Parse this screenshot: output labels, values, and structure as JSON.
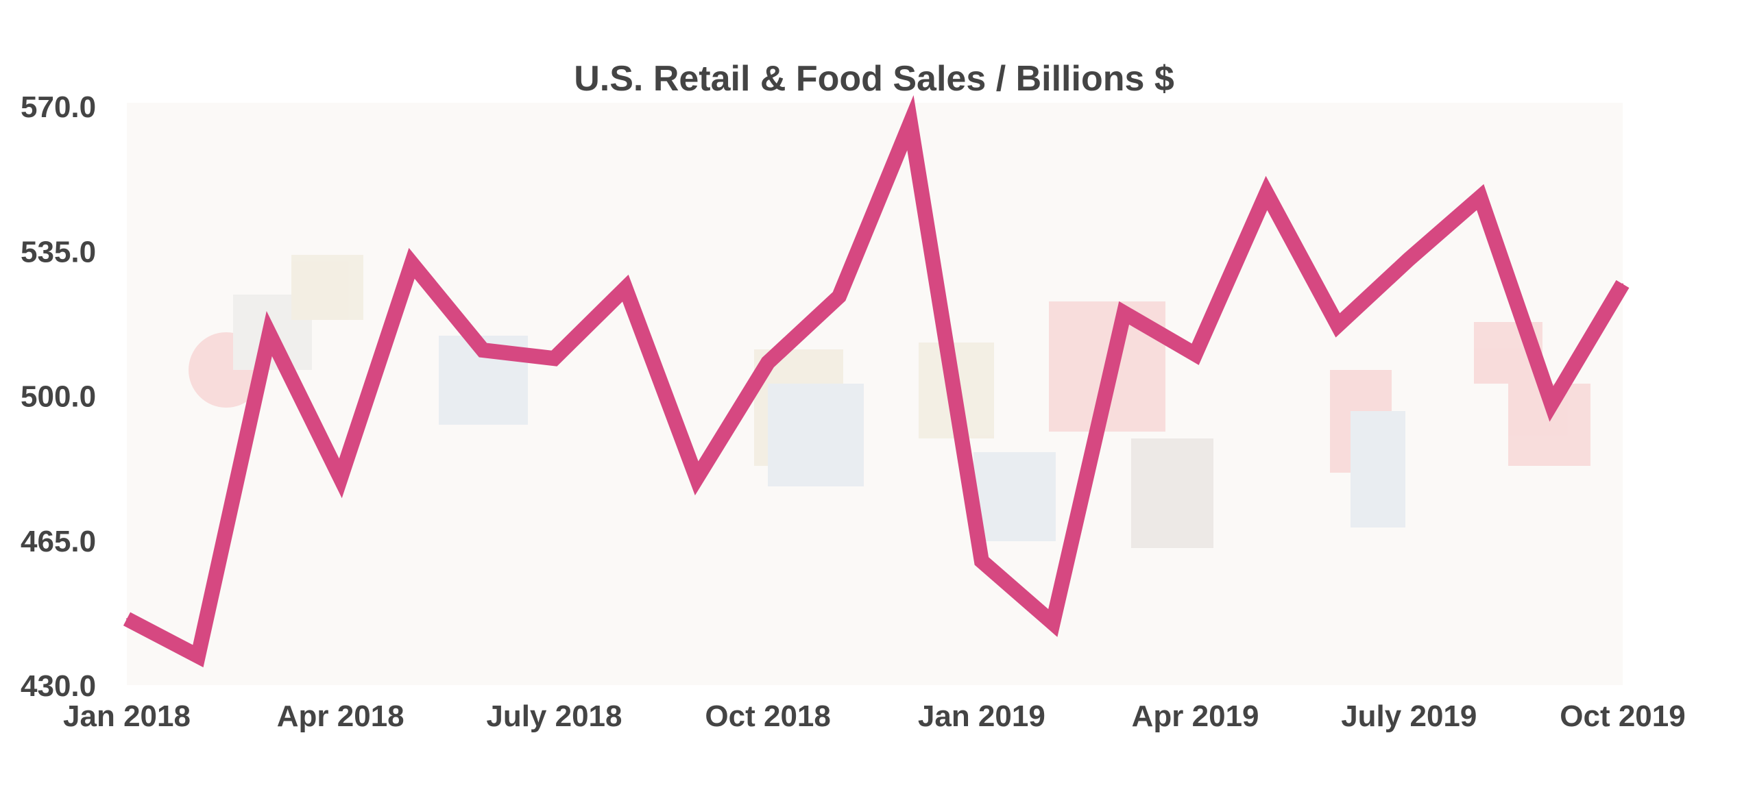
{
  "chart_data": {
    "type": "line",
    "title": "U.S. Retail & Food Sales / Billions $",
    "xlabel": "",
    "ylabel": "",
    "ylim": [
      430,
      570
    ],
    "yticks": [
      "570.0",
      "535.0",
      "500.0",
      "465.0",
      "430.0"
    ],
    "ytick_values": [
      570,
      535,
      500,
      465,
      430
    ],
    "xtick_labels": [
      "Jan 2018",
      "Apr 2018",
      "July 2018",
      "Oct 2018",
      "Jan 2019",
      "Apr 2019",
      "July 2019",
      "Oct 2019"
    ],
    "xtick_index": [
      0,
      3,
      6,
      9,
      12,
      15,
      18,
      21
    ],
    "grid": false,
    "series": [
      {
        "name": "Retail & Food Sales",
        "color": "#d64881",
        "x": [
          "2018-01",
          "2018-02",
          "2018-03",
          "2018-04",
          "2018-05",
          "2018-06",
          "2018-07",
          "2018-08",
          "2018-09",
          "2018-10",
          "2018-11",
          "2018-12",
          "2019-01",
          "2019-02",
          "2019-03",
          "2019-04",
          "2019-05",
          "2019-06",
          "2019-07",
          "2019-08",
          "2019-09",
          "2019-10"
        ],
        "values": [
          446,
          437,
          515,
          480,
          532,
          511,
          509,
          526,
          480,
          508,
          524,
          566,
          460,
          445,
          520,
          510,
          549,
          517,
          533,
          548,
          498,
          527
        ]
      }
    ],
    "background_color": "#fbf9f7"
  }
}
